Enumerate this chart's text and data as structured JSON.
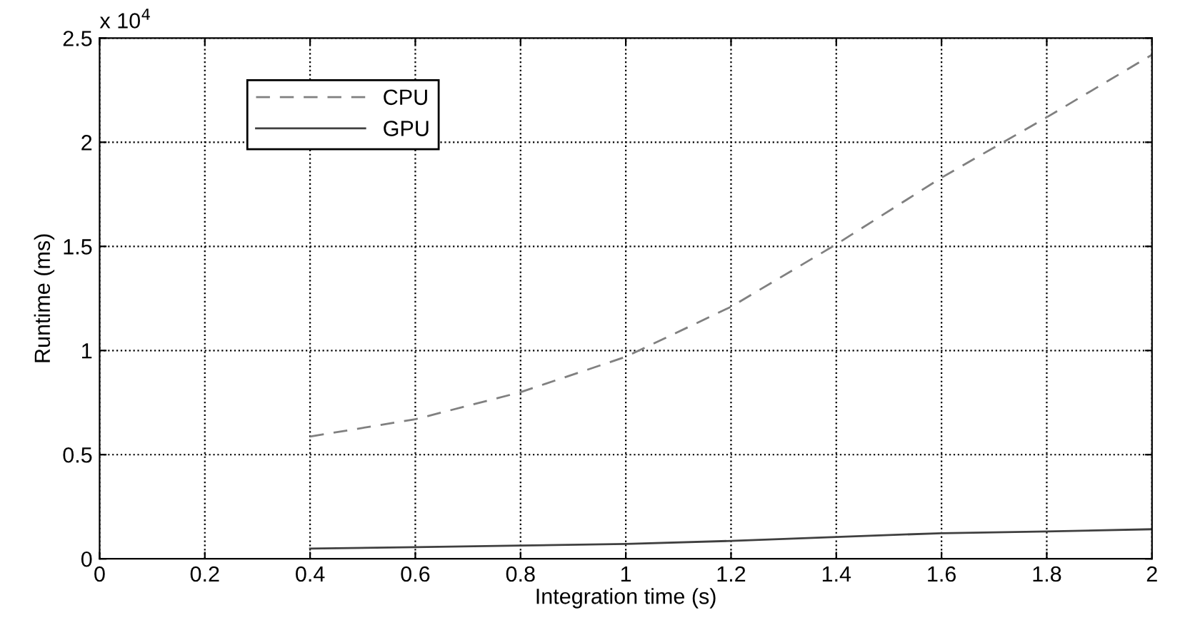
{
  "chart_data": {
    "type": "line",
    "xlabel": "Integration time (s)",
    "ylabel": "Runtime (ms)",
    "x": [
      0.4,
      0.6,
      0.8,
      1.0,
      1.2,
      1.4,
      1.6,
      1.8,
      2.0
    ],
    "series": [
      {
        "name": "CPU",
        "color": "#808080",
        "line_style": "dashed",
        "values": [
          0.587,
          0.67,
          0.8,
          0.97,
          1.21,
          1.51,
          1.83,
          2.12,
          2.42
        ]
      },
      {
        "name": "GPU",
        "color": "#404040",
        "line_style": "solid",
        "values": [
          0.049,
          0.056,
          0.064,
          0.071,
          0.086,
          0.105,
          0.123,
          0.131,
          0.142
        ]
      }
    ],
    "xlim": [
      0,
      2
    ],
    "xticks": [
      0,
      0.2,
      0.4,
      0.6,
      0.8,
      1,
      1.2,
      1.4,
      1.6,
      1.8,
      2
    ],
    "ylim": [
      0,
      2.5
    ],
    "yticks": [
      0,
      0.5,
      1,
      1.5,
      2,
      2.5
    ],
    "annotations": [
      "x 10$^{4}$"
    ],
    "grid": true,
    "legend": "top left"
  }
}
